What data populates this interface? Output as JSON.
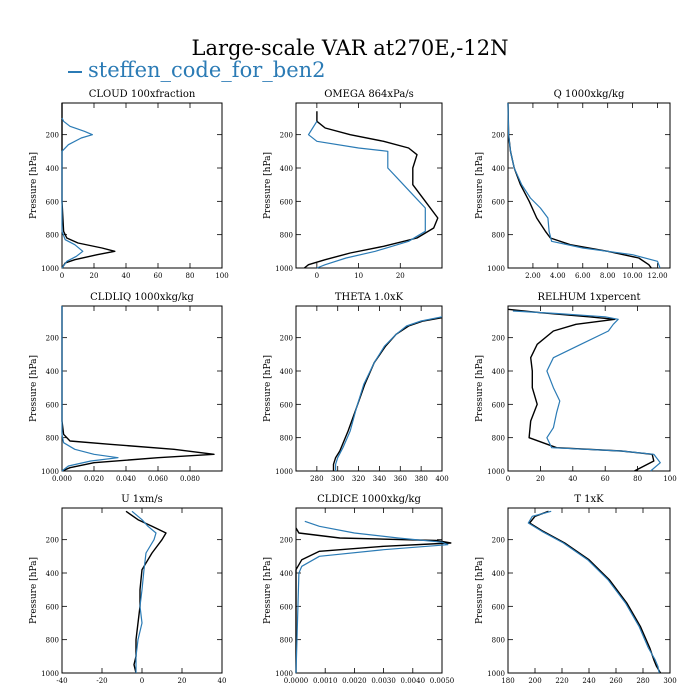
{
  "title": "Large-scale VAR at270E,-12N",
  "legend": {
    "label": "steffen_code_for_ben2",
    "color": "#2b7bb5",
    "reference_color": "#000000"
  },
  "chart_data": [
    {
      "type": "line",
      "title": "CLOUD  100xfraction",
      "ylabel": "Pressure [hPa]",
      "xlim": [
        0,
        100
      ],
      "ylim": [
        1000,
        10
      ],
      "xticks": [
        0,
        20,
        40,
        60,
        80,
        100
      ],
      "xticklabels": [
        "0",
        "20",
        "40",
        "60",
        "80",
        "100"
      ],
      "yticks": [
        200,
        400,
        600,
        800,
        1000
      ],
      "yticklabels": [
        "200",
        "400",
        "600",
        "800",
        "1000"
      ],
      "series": [
        {
          "color": "#000000",
          "x": [
            0,
            0,
            0,
            1,
            3,
            10,
            25,
            33,
            22,
            8,
            2,
            0
          ],
          "y": [
            10,
            300,
            600,
            780,
            820,
            850,
            880,
            900,
            920,
            950,
            970,
            1000
          ]
        },
        {
          "color": "#2b7bb5",
          "x": [
            0,
            1,
            5,
            14,
            19,
            12,
            4,
            0,
            0,
            0,
            2,
            8,
            13,
            9,
            3,
            0
          ],
          "y": [
            100,
            120,
            150,
            180,
            200,
            220,
            260,
            300,
            400,
            780,
            830,
            860,
            900,
            930,
            960,
            1000
          ]
        }
      ]
    },
    {
      "type": "line",
      "title": "OMEGA  864xPa/s",
      "ylabel": "Pressure [hPa]",
      "xlim": [
        -5,
        30
      ],
      "ylim": [
        1000,
        10
      ],
      "xticks": [
        0,
        10,
        20
      ],
      "xticklabels": [
        "0",
        "10",
        "20"
      ],
      "yticks": [
        200,
        400,
        600,
        800,
        1000
      ],
      "yticklabels": [
        "200",
        "400",
        "600",
        "800",
        "1000"
      ],
      "series": [
        {
          "color": "#000000",
          "x": [
            0,
            0,
            2,
            8,
            16,
            22,
            24,
            23,
            23,
            26,
            29,
            28,
            24,
            16,
            8,
            2,
            -2,
            -3
          ],
          "y": [
            60,
            120,
            160,
            200,
            240,
            280,
            320,
            400,
            500,
            600,
            700,
            760,
            820,
            870,
            910,
            950,
            980,
            1000
          ]
        },
        {
          "color": "#2b7bb5",
          "x": [
            0,
            -1,
            -2,
            0,
            10,
            17,
            17,
            17,
            20,
            23,
            26,
            26,
            26,
            22,
            14,
            7,
            2,
            0
          ],
          "y": [
            120,
            160,
            200,
            240,
            280,
            300,
            340,
            400,
            480,
            560,
            640,
            700,
            780,
            840,
            900,
            940,
            980,
            1000
          ]
        }
      ]
    },
    {
      "type": "line",
      "title": "Q  1000xkg/kg",
      "ylabel": "Pressure [hPa]",
      "xlim": [
        0,
        13
      ],
      "ylim": [
        1000,
        10
      ],
      "xticks": [
        2,
        4,
        6,
        8,
        10,
        12
      ],
      "xticklabels": [
        "2.00",
        "4.00",
        "6.00",
        "8.00",
        "10.00",
        "12.00"
      ],
      "yticks": [
        200,
        400,
        600,
        800,
        1000
      ],
      "yticklabels": [
        "200",
        "400",
        "600",
        "800",
        "1000"
      ],
      "series": [
        {
          "color": "#000000",
          "x": [
            0,
            0.05,
            0.2,
            0.5,
            1,
            1.7,
            2.3,
            3,
            3.4,
            5,
            8,
            10.5,
            11.3,
            11.5
          ],
          "y": [
            10,
            200,
            300,
            400,
            500,
            600,
            700,
            780,
            820,
            860,
            900,
            940,
            980,
            1000
          ]
        },
        {
          "color": "#2b7bb5",
          "x": [
            0,
            0.05,
            0.2,
            0.5,
            1.1,
            1.8,
            2.6,
            3.2,
            3.3,
            3.5,
            6,
            10,
            12,
            12.2
          ],
          "y": [
            10,
            200,
            300,
            400,
            500,
            580,
            640,
            700,
            780,
            840,
            880,
            920,
            960,
            1000
          ]
        }
      ]
    },
    {
      "type": "line",
      "title": "CLDLIQ  1000xkg/kg",
      "ylabel": "Pressure [hPa]",
      "xlim": [
        0,
        0.1
      ],
      "ylim": [
        1000,
        10
      ],
      "xticks": [
        0,
        0.02,
        0.04,
        0.06,
        0.08
      ],
      "xticklabels": [
        "0.000",
        "0.020",
        "0.040",
        "0.060",
        "0.080"
      ],
      "yticks": [
        200,
        400,
        600,
        800,
        1000
      ],
      "yticklabels": [
        "200",
        "400",
        "600",
        "800",
        "1000"
      ],
      "series": [
        {
          "color": "#000000",
          "x": [
            0,
            0,
            0.001,
            0.005,
            0.03,
            0.07,
            0.095,
            0.06,
            0.02,
            0.005,
            0
          ],
          "y": [
            10,
            700,
            780,
            820,
            840,
            870,
            900,
            920,
            950,
            980,
            1000
          ]
        },
        {
          "color": "#2b7bb5",
          "x": [
            0,
            0,
            0.001,
            0.008,
            0.02,
            0.035,
            0.018,
            0.004,
            0
          ],
          "y": [
            10,
            780,
            830,
            870,
            900,
            920,
            940,
            970,
            1000
          ]
        }
      ]
    },
    {
      "type": "line",
      "title": "THETA  1.0xK",
      "ylabel": "Pressure [hPa]",
      "xlim": [
        260,
        400
      ],
      "ylim": [
        1000,
        10
      ],
      "xticks": [
        280,
        300,
        320,
        340,
        360,
        380,
        400
      ],
      "xticklabels": [
        "280",
        "300",
        "320",
        "340",
        "360",
        "380",
        "400"
      ],
      "yticks": [
        200,
        400,
        600,
        800,
        1000
      ],
      "yticklabels": [
        "200",
        "400",
        "600",
        "800",
        "1000"
      ],
      "series": [
        {
          "color": "#000000",
          "x": [
            400,
            382,
            368,
            356,
            346,
            335,
            326,
            318,
            310,
            302,
            298,
            296,
            296
          ],
          "y": [
            80,
            100,
            130,
            180,
            250,
            350,
            480,
            620,
            760,
            880,
            920,
            960,
            1000
          ]
        },
        {
          "color": "#2b7bb5",
          "x": [
            400,
            380,
            366,
            356,
            345,
            335,
            325,
            318,
            312,
            305,
            300,
            298,
            298
          ],
          "y": [
            75,
            100,
            130,
            180,
            250,
            350,
            480,
            620,
            760,
            860,
            920,
            960,
            1000
          ]
        }
      ]
    },
    {
      "type": "line",
      "title": "RELHUM  1xpercent",
      "ylabel": "Pressure [hPa]",
      "xlim": [
        0,
        100
      ],
      "ylim": [
        1000,
        10
      ],
      "xticks": [
        0,
        20,
        40,
        60,
        80,
        100
      ],
      "xticklabels": [
        "0",
        "20",
        "40",
        "60",
        "80",
        "100"
      ],
      "yticks": [
        200,
        400,
        600,
        800,
        1000
      ],
      "yticklabels": [
        "200",
        "400",
        "600",
        "800",
        "1000"
      ],
      "series": [
        {
          "color": "#000000",
          "x": [
            0,
            20,
            50,
            66,
            42,
            28,
            18,
            14,
            15,
            15,
            18,
            14,
            13,
            30,
            70,
            89,
            90,
            78
          ],
          "y": [
            30,
            50,
            75,
            90,
            120,
            160,
            240,
            320,
            400,
            500,
            600,
            700,
            800,
            860,
            880,
            900,
            940,
            1000
          ]
        },
        {
          "color": "#2b7bb5",
          "x": [
            3,
            30,
            60,
            68,
            65,
            62,
            45,
            28,
            24,
            28,
            32,
            30,
            28,
            24,
            27,
            70,
            90,
            94,
            88
          ],
          "y": [
            40,
            55,
            75,
            90,
            120,
            160,
            240,
            320,
            400,
            500,
            580,
            650,
            740,
            800,
            860,
            880,
            900,
            950,
            1000
          ]
        }
      ]
    },
    {
      "type": "line",
      "title": "U  1xm/s",
      "ylabel": "Pressure [hPa]",
      "xlim": [
        -40,
        40
      ],
      "ylim": [
        1000,
        10
      ],
      "xticks": [
        -40,
        -20,
        0,
        20,
        40
      ],
      "xticklabels": [
        "-40",
        "-20",
        "0",
        "20",
        "40"
      ],
      "yticks": [
        200,
        400,
        600,
        800,
        1000
      ],
      "yticklabels": [
        "200",
        "400",
        "600",
        "800",
        "1000"
      ],
      "series": [
        {
          "color": "#000000",
          "x": [
            -8,
            -2,
            5,
            12,
            10,
            5,
            0,
            -1,
            -1,
            -2,
            -3,
            -3,
            -4,
            -3
          ],
          "y": [
            30,
            80,
            120,
            160,
            200,
            280,
            380,
            500,
            600,
            700,
            800,
            900,
            950,
            1000
          ]
        },
        {
          "color": "#2b7bb5",
          "x": [
            -5,
            0,
            3,
            7,
            6,
            2,
            1,
            0,
            -1,
            0,
            -2,
            -3,
            -3
          ],
          "y": [
            30,
            80,
            120,
            160,
            200,
            280,
            380,
            500,
            600,
            700,
            800,
            900,
            1000
          ]
        }
      ]
    },
    {
      "type": "line",
      "title": "CLDICE  1000xkg/kg",
      "ylabel": "Pressure [hPa]",
      "xlim": [
        0,
        0.005
      ],
      "ylim": [
        1000,
        10
      ],
      "xticks": [
        0,
        0.001,
        0.002,
        0.003,
        0.004,
        0.005
      ],
      "xticklabels": [
        "0.0000",
        "0.0010",
        "0.0020",
        "0.0030",
        "0.0040",
        "0.0050"
      ],
      "yticks": [
        200,
        400,
        600,
        800,
        1000
      ],
      "yticklabels": [
        "200",
        "400",
        "600",
        "800",
        "1000"
      ],
      "series": [
        {
          "color": "#000000",
          "x": [
            0,
            0.0001,
            0.0015,
            0.0048,
            0.0053,
            0.003,
            0.0008,
            0.0002,
            0,
            0
          ],
          "y": [
            130,
            160,
            190,
            205,
            220,
            240,
            270,
            320,
            380,
            1000
          ]
        },
        {
          "color": "#2b7bb5",
          "x": [
            0.0003,
            0.0008,
            0.002,
            0.0035,
            0.005,
            0.0052,
            0.003,
            0.0008,
            0.0002,
            0.0001,
            0
          ],
          "y": [
            90,
            120,
            160,
            190,
            215,
            230,
            260,
            300,
            360,
            400,
            1000
          ]
        }
      ]
    },
    {
      "type": "line",
      "title": "T  1xK",
      "ylabel": "Pressure [hPa]",
      "xlim": [
        180,
        300
      ],
      "ylim": [
        1000,
        10
      ],
      "xticks": [
        180,
        200,
        220,
        240,
        260,
        280,
        300
      ],
      "xticklabels": [
        "180",
        "200",
        "220",
        "240",
        "260",
        "280",
        "300"
      ],
      "yticks": [
        200,
        400,
        600,
        800,
        1000
      ],
      "yticklabels": [
        "200",
        "400",
        "600",
        "800",
        "1000"
      ],
      "series": [
        {
          "color": "#000000",
          "x": [
            210,
            200,
            196,
            206,
            222,
            240,
            255,
            268,
            278,
            285,
            288,
            290,
            293
          ],
          "y": [
            30,
            60,
            100,
            150,
            220,
            320,
            440,
            580,
            720,
            850,
            920,
            960,
            1000
          ]
        },
        {
          "color": "#2b7bb5",
          "x": [
            212,
            198,
            195,
            205,
            221,
            239,
            254,
            267,
            277,
            284,
            289,
            291,
            292
          ],
          "y": [
            30,
            60,
            100,
            150,
            220,
            320,
            440,
            580,
            720,
            850,
            920,
            960,
            1000
          ]
        }
      ]
    }
  ]
}
